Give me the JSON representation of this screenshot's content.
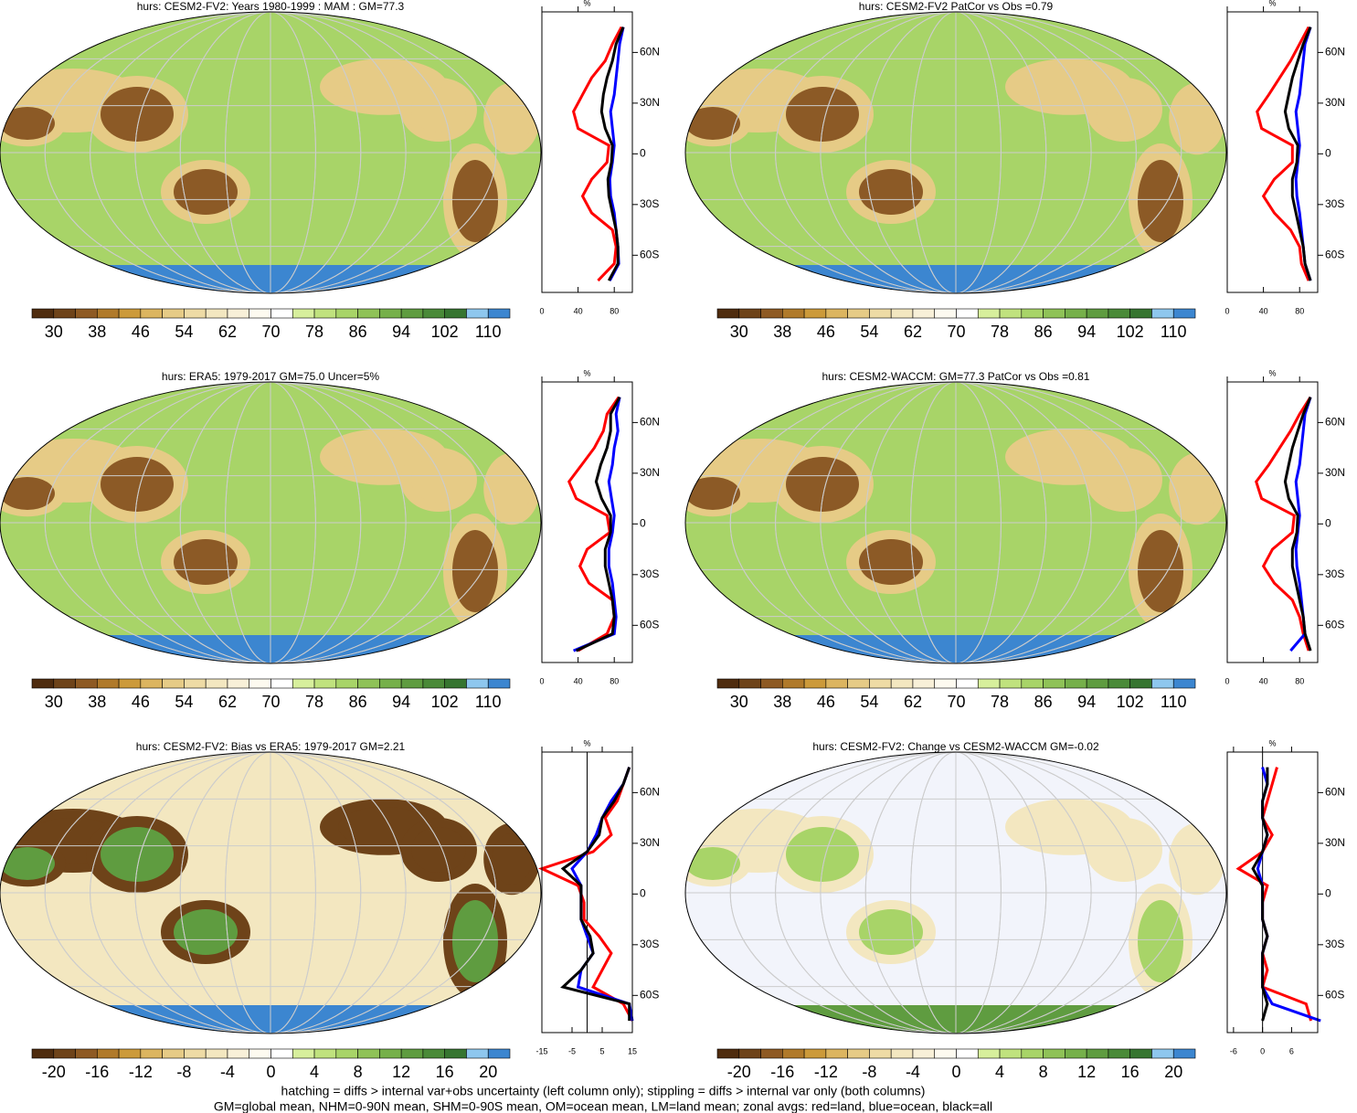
{
  "chart_data": [
    {
      "type": "line",
      "title": "hurs: CESM2-FV2: Years 1980-1999 : MAM : GM=77.3",
      "map": "field",
      "xlabel": "%",
      "xlim": [
        0,
        100
      ],
      "xticks": [
        0,
        40,
        80
      ],
      "ylim": [
        -82,
        84
      ],
      "yticks": [
        {
          "value": 60,
          "label": "60N"
        },
        {
          "value": 30,
          "label": "30N"
        },
        0,
        {
          "value": -30,
          "label": "30S"
        },
        {
          "value": -60,
          "label": "60S"
        }
      ],
      "y": [
        -75,
        -65,
        -55,
        -45,
        -35,
        -25,
        -15,
        -5,
        5,
        15,
        25,
        35,
        45,
        55,
        65,
        75
      ],
      "series": [
        {
          "color": "#ff0000",
          "values": [
            62,
            80,
            82,
            78,
            55,
            45,
            55,
            72,
            74,
            40,
            35,
            45,
            55,
            70,
            78,
            88
          ]
        },
        {
          "color": "#0000ff",
          "values": [
            75,
            85,
            84,
            82,
            80,
            76,
            75,
            78,
            80,
            78,
            76,
            80,
            82,
            84,
            86,
            90
          ]
        },
        {
          "color": "#000000",
          "values": [
            74,
            84,
            84,
            82,
            78,
            74,
            73,
            77,
            78,
            70,
            66,
            68,
            72,
            78,
            82,
            90
          ]
        }
      ],
      "colorbar": {
        "lim": [
          26,
          114
        ],
        "ticks": [
          30,
          38,
          46,
          54,
          62,
          70,
          78,
          86,
          94,
          102,
          110
        ],
        "colors": [
          "#4f2c0e",
          "#6e4319",
          "#8e5a23",
          "#b07a2a",
          "#cc9a3a",
          "#dcb560",
          "#e6cb86",
          "#eedba5",
          "#f3e7c0",
          "#f8f0d8",
          "#fdfaf0",
          "#ffffff",
          "#d7ef9c",
          "#c0e27e",
          "#a8d468",
          "#8fc257",
          "#76b04a",
          "#5f9c40",
          "#4a8a38",
          "#367530",
          "#8ec7ee",
          "#3c86d0"
        ]
      }
    },
    {
      "type": "line",
      "title": "hurs: CESM2-FV2 PatCor vs Obs =0.79",
      "map": "field",
      "xlabel": "%",
      "xlim": [
        0,
        100
      ],
      "xticks": [
        0,
        40,
        80
      ],
      "ylim": [
        -82,
        84
      ],
      "yticks": [
        {
          "value": 60,
          "label": "60N"
        },
        {
          "value": 30,
          "label": "30N"
        },
        0,
        {
          "value": -30,
          "label": "30S"
        },
        {
          "value": -60,
          "label": "60S"
        }
      ],
      "y": [
        -75,
        -65,
        -55,
        -45,
        -35,
        -25,
        -15,
        -5,
        5,
        15,
        25,
        35,
        45,
        55,
        65,
        75
      ],
      "series": [
        {
          "color": "#ff0000",
          "values": [
            90,
            82,
            80,
            70,
            52,
            40,
            52,
            72,
            72,
            38,
            33,
            46,
            58,
            70,
            80,
            90
          ]
        },
        {
          "color": "#0000ff",
          "values": [
            92,
            86,
            84,
            82,
            80,
            77,
            76,
            78,
            80,
            78,
            76,
            80,
            82,
            84,
            86,
            92
          ]
        },
        {
          "color": "#000000",
          "values": [
            92,
            86,
            84,
            80,
            76,
            72,
            72,
            77,
            78,
            68,
            64,
            68,
            72,
            78,
            84,
            92
          ]
        }
      ],
      "colorbar": {
        "lim": [
          26,
          114
        ],
        "ticks": [
          30,
          38,
          46,
          54,
          62,
          70,
          78,
          86,
          94,
          102,
          110
        ],
        "colors": [
          "#4f2c0e",
          "#6e4319",
          "#8e5a23",
          "#b07a2a",
          "#cc9a3a",
          "#dcb560",
          "#e6cb86",
          "#eedba5",
          "#f3e7c0",
          "#f8f0d8",
          "#fdfaf0",
          "#ffffff",
          "#d7ef9c",
          "#c0e27e",
          "#a8d468",
          "#8fc257",
          "#76b04a",
          "#5f9c40",
          "#4a8a38",
          "#367530",
          "#8ec7ee",
          "#3c86d0"
        ]
      }
    },
    {
      "type": "line",
      "title": "hurs: ERA5: 1979-2017 GM=75.0 Uncer=5%",
      "map": "field",
      "xlabel": "%",
      "xlim": [
        0,
        100
      ],
      "xticks": [
        0,
        40,
        80
      ],
      "ylim": [
        -82,
        84
      ],
      "yticks": [
        {
          "value": 60,
          "label": "60N"
        },
        {
          "value": 30,
          "label": "30N"
        },
        0,
        {
          "value": -30,
          "label": "30S"
        },
        {
          "value": -60,
          "label": "60S"
        }
      ],
      "y": [
        -75,
        -65,
        -55,
        -45,
        -35,
        -25,
        -15,
        -5,
        5,
        15,
        25,
        35,
        45,
        55,
        65,
        75
      ],
      "series": [
        {
          "color": "#ff0000",
          "values": [
            40,
            72,
            80,
            78,
            52,
            42,
            50,
            75,
            72,
            38,
            30,
            44,
            58,
            68,
            72,
            85
          ]
        },
        {
          "color": "#0000ff",
          "values": [
            35,
            80,
            82,
            80,
            78,
            74,
            74,
            78,
            80,
            77,
            74,
            78,
            80,
            84,
            82,
            86
          ]
        },
        {
          "color": "#000000",
          "values": [
            38,
            78,
            80,
            78,
            74,
            70,
            70,
            76,
            76,
            66,
            60,
            65,
            72,
            76,
            76,
            86
          ]
        }
      ],
      "colorbar": {
        "lim": [
          26,
          114
        ],
        "ticks": [
          30,
          38,
          46,
          54,
          62,
          70,
          78,
          86,
          94,
          102,
          110
        ],
        "colors": [
          "#4f2c0e",
          "#6e4319",
          "#8e5a23",
          "#b07a2a",
          "#cc9a3a",
          "#dcb560",
          "#e6cb86",
          "#eedba5",
          "#f3e7c0",
          "#f8f0d8",
          "#fdfaf0",
          "#ffffff",
          "#d7ef9c",
          "#c0e27e",
          "#a8d468",
          "#8fc257",
          "#76b04a",
          "#5f9c40",
          "#4a8a38",
          "#367530",
          "#8ec7ee",
          "#3c86d0"
        ]
      }
    },
    {
      "type": "line",
      "title": "hurs: CESM2-WACCM: GM=77.3 PatCor vs Obs =0.81",
      "map": "field",
      "xlabel": "%",
      "xlim": [
        0,
        100
      ],
      "xticks": [
        0,
        40,
        80
      ],
      "ylim": [
        -82,
        84
      ],
      "yticks": [
        {
          "value": 60,
          "label": "60N"
        },
        {
          "value": 30,
          "label": "30N"
        },
        0,
        {
          "value": -30,
          "label": "30S"
        },
        {
          "value": -60,
          "label": "60S"
        }
      ],
      "y": [
        -75,
        -65,
        -55,
        -45,
        -35,
        -25,
        -15,
        -5,
        5,
        15,
        25,
        35,
        45,
        55,
        65,
        75
      ],
      "series": [
        {
          "color": "#ff0000",
          "values": [
            90,
            84,
            80,
            72,
            52,
            40,
            50,
            72,
            74,
            38,
            32,
            46,
            58,
            70,
            80,
            92
          ]
        },
        {
          "color": "#0000ff",
          "values": [
            70,
            86,
            84,
            82,
            80,
            77,
            76,
            78,
            80,
            78,
            76,
            80,
            82,
            84,
            86,
            92
          ]
        },
        {
          "color": "#000000",
          "values": [
            92,
            86,
            84,
            80,
            76,
            72,
            72,
            77,
            78,
            68,
            64,
            68,
            72,
            78,
            84,
            92
          ]
        }
      ],
      "colorbar": {
        "lim": [
          26,
          114
        ],
        "ticks": [
          30,
          38,
          46,
          54,
          62,
          70,
          78,
          86,
          94,
          102,
          110
        ],
        "colors": [
          "#4f2c0e",
          "#6e4319",
          "#8e5a23",
          "#b07a2a",
          "#cc9a3a",
          "#dcb560",
          "#e6cb86",
          "#eedba5",
          "#f3e7c0",
          "#f8f0d8",
          "#fdfaf0",
          "#ffffff",
          "#d7ef9c",
          "#c0e27e",
          "#a8d468",
          "#8fc257",
          "#76b04a",
          "#5f9c40",
          "#4a8a38",
          "#367530",
          "#8ec7ee",
          "#3c86d0"
        ]
      }
    },
    {
      "type": "line",
      "title": "hurs: CESM2-FV2: Bias vs ERA5: 1979-2017 GM=2.21",
      "map": "bias",
      "xlabel": "%",
      "xlim": [
        -15,
        15
      ],
      "xticks": [
        -15,
        -5,
        5,
        15
      ],
      "ylim": [
        -82,
        84
      ],
      "zero_line": true,
      "yticks": [
        {
          "value": 60,
          "label": "60N"
        },
        {
          "value": 30,
          "label": "30N"
        },
        0,
        {
          "value": -30,
          "label": "30S"
        },
        {
          "value": -60,
          "label": "60S"
        }
      ],
      "y": [
        -75,
        -65,
        -55,
        -45,
        -35,
        -25,
        -15,
        -5,
        5,
        15,
        25,
        35,
        45,
        55,
        65,
        75
      ],
      "series": [
        {
          "color": "#ff0000",
          "values": [
            15,
            12,
            2,
            5,
            8,
            4,
            -1,
            -1,
            -3,
            -15,
            2,
            8,
            6,
            10,
            12,
            14
          ]
        },
        {
          "color": "#0000ff",
          "values": [
            15,
            14,
            -3,
            -2,
            2,
            0,
            -2,
            -2,
            -2,
            -5,
            0,
            3,
            5,
            8,
            12,
            14
          ]
        },
        {
          "color": "#000000",
          "values": [
            14,
            14,
            -8,
            -2,
            2,
            1,
            -2,
            -2,
            -2,
            -8,
            0,
            4,
            5,
            9,
            12,
            14
          ]
        }
      ],
      "colorbar": {
        "lim": [
          -22,
          22
        ],
        "ticks": [
          -20,
          -16,
          -12,
          -8,
          -4,
          0,
          4,
          8,
          12,
          16,
          20
        ],
        "colors": [
          "#4f2c0e",
          "#6e4319",
          "#8e5a23",
          "#b07a2a",
          "#cc9a3a",
          "#dcb560",
          "#e6cb86",
          "#eedba5",
          "#f3e7c0",
          "#f8f0d8",
          "#fdfaf0",
          "#ffffff",
          "#d7ef9c",
          "#c0e27e",
          "#a8d468",
          "#8fc257",
          "#76b04a",
          "#5f9c40",
          "#4a8a38",
          "#367530",
          "#8ec7ee",
          "#3c86d0"
        ]
      }
    },
    {
      "type": "line",
      "title": "hurs: CESM2-FV2: Change vs CESM2-WACCM GM=-0.02",
      "map": "change",
      "xlabel": "%",
      "xlim": [
        -7.3,
        11.4
      ],
      "xticks": [
        -6,
        0,
        6
      ],
      "ylim": [
        -82,
        84
      ],
      "zero_line": true,
      "yticks": [
        {
          "value": 60,
          "label": "60N"
        },
        {
          "value": 30,
          "label": "30N"
        },
        0,
        {
          "value": -30,
          "label": "30S"
        },
        {
          "value": -60,
          "label": "60S"
        }
      ],
      "y": [
        -75,
        -65,
        -55,
        -45,
        -35,
        -25,
        -15,
        -5,
        5,
        15,
        25,
        35,
        45,
        55,
        65,
        75
      ],
      "series": [
        {
          "color": "#ff0000",
          "values": [
            10,
            9,
            0,
            1,
            0,
            1,
            0,
            0,
            1,
            -5,
            0,
            2,
            0,
            1,
            2,
            3
          ]
        },
        {
          "color": "#0000ff",
          "values": [
            12,
            2,
            0,
            0,
            0,
            1,
            0,
            0,
            0,
            -1,
            0,
            1,
            0,
            0,
            1,
            0
          ]
        },
        {
          "color": "#000000",
          "values": [
            0,
            1,
            0,
            0,
            0,
            1,
            0,
            0,
            0,
            -2,
            0,
            1,
            0,
            0,
            1,
            1
          ]
        }
      ],
      "colorbar": {
        "lim": [
          -22,
          22
        ],
        "ticks": [
          -20,
          -16,
          -12,
          -8,
          -4,
          0,
          4,
          8,
          12,
          16,
          20
        ],
        "colors": [
          "#4f2c0e",
          "#6e4319",
          "#8e5a23",
          "#b07a2a",
          "#cc9a3a",
          "#dcb560",
          "#e6cb86",
          "#eedba5",
          "#f3e7c0",
          "#f8f0d8",
          "#fdfaf0",
          "#ffffff",
          "#d7ef9c",
          "#c0e27e",
          "#a8d468",
          "#8fc257",
          "#76b04a",
          "#5f9c40",
          "#4a8a38",
          "#367530",
          "#8ec7ee",
          "#3c86d0"
        ]
      }
    }
  ],
  "footnote": [
    "hatching = diffs > internal var+obs uncertainty (left column only); stippling = diffs > internal var only (both columns)",
    "GM=global mean, NHM=0-90N mean, SHM=0-90S mean, OM=ocean mean, LM=land mean; zonal avgs: red=land, blue=ocean, black=all"
  ]
}
